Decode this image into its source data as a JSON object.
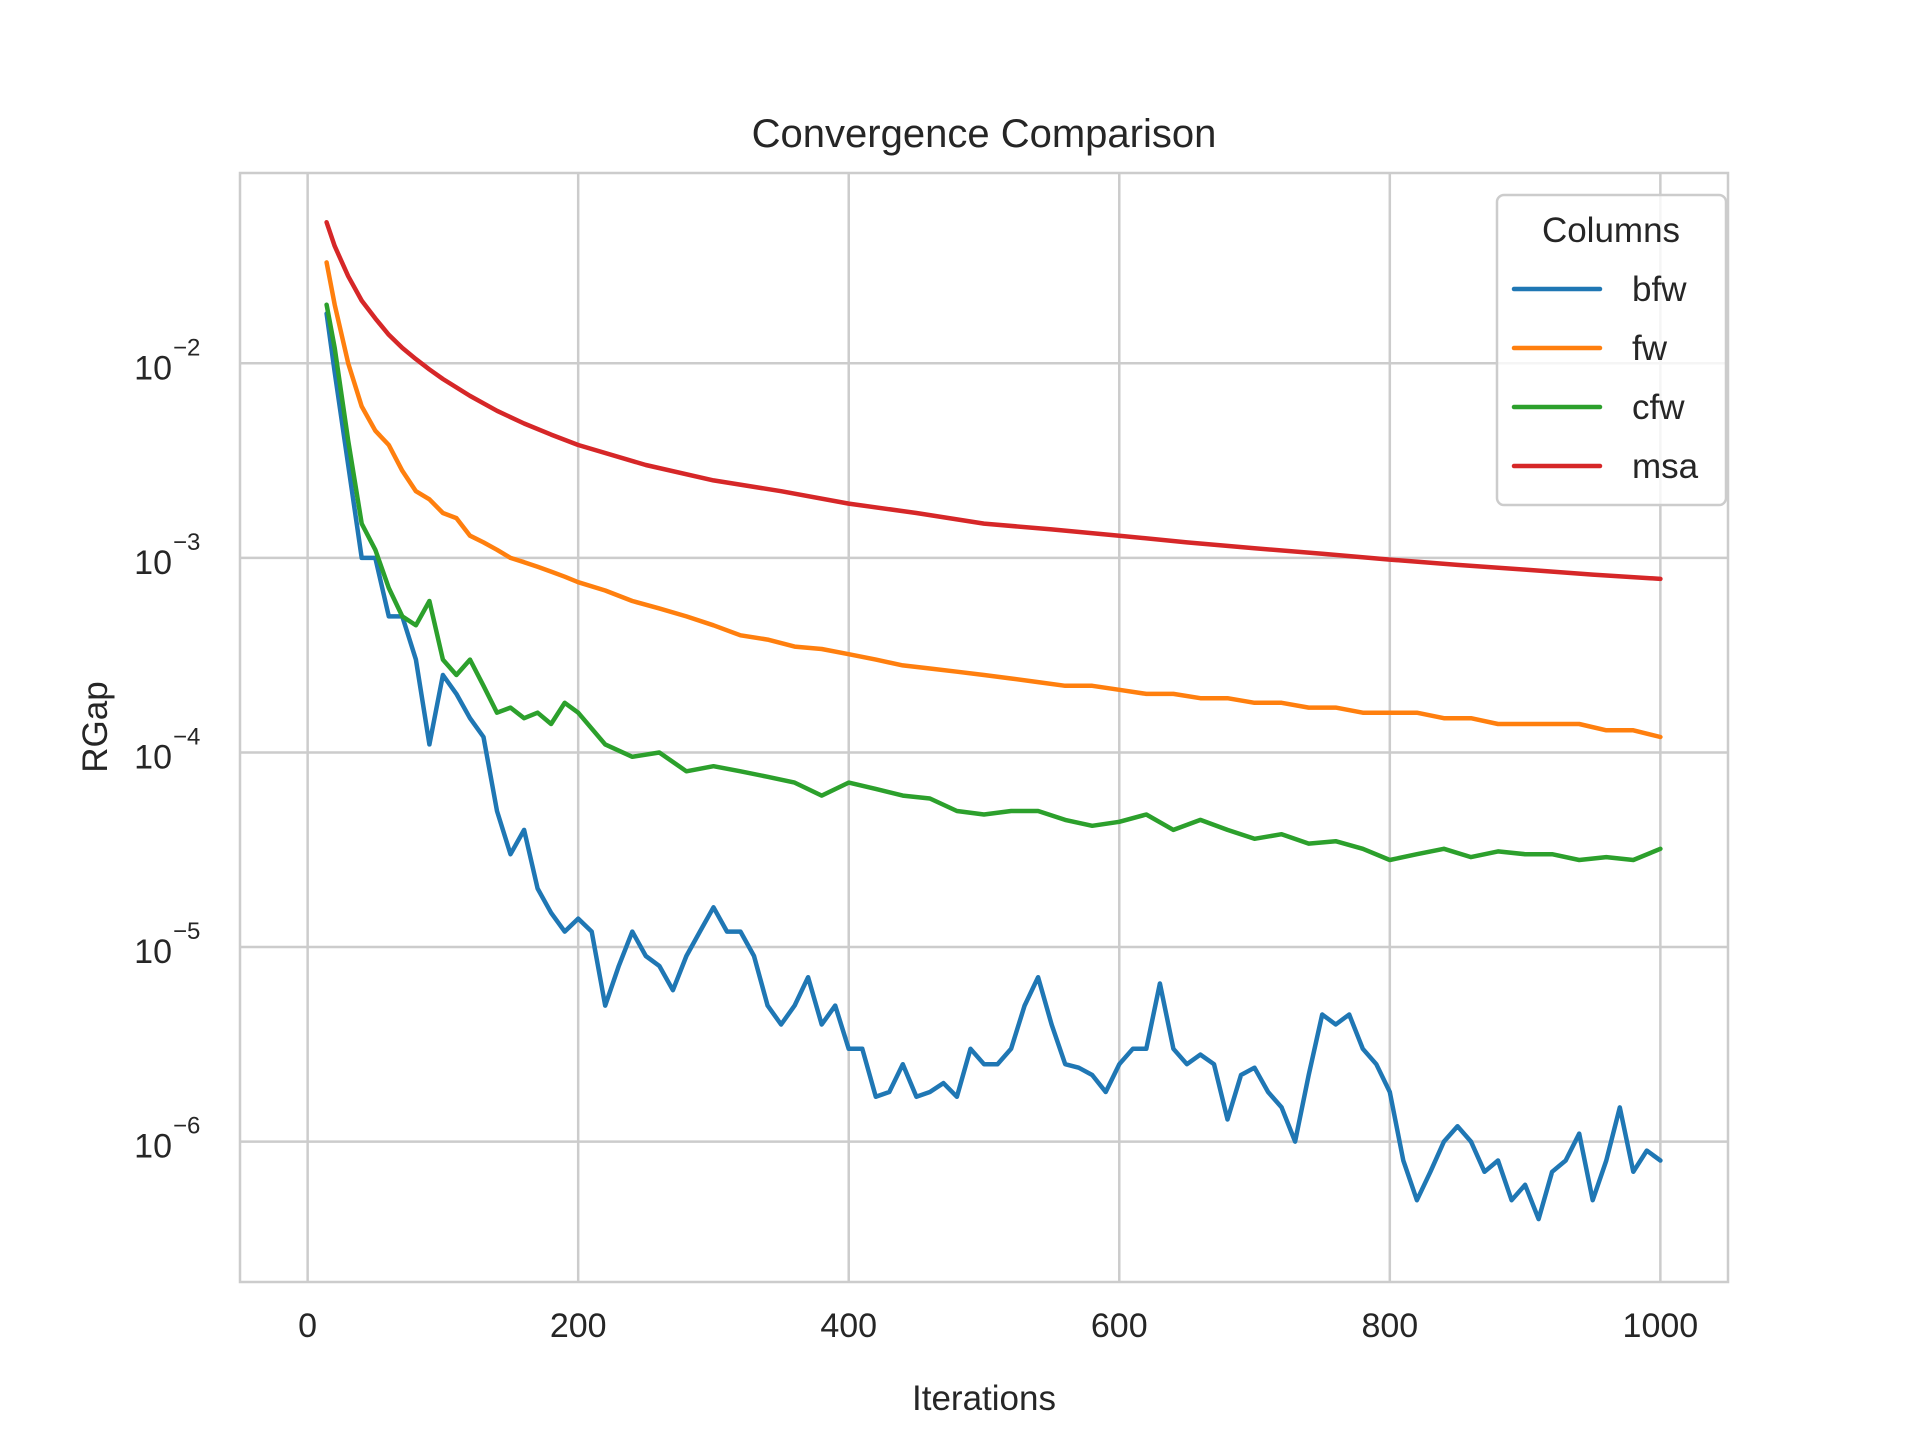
{
  "chart_data": {
    "type": "line",
    "title": "Convergence Comparison",
    "xlabel": "Iterations",
    "ylabel": "RGap",
    "xscale": "linear",
    "yscale": "log",
    "xlim": [
      -50,
      1050
    ],
    "ylim": [
      1.9e-07,
      0.095
    ],
    "x_ticks": [
      0,
      200,
      400,
      600,
      800,
      1000
    ],
    "x_tick_labels": [
      "0",
      "200",
      "400",
      "600",
      "800",
      "1000"
    ],
    "y_ticks": [
      0.01,
      0.001,
      0.0001,
      1e-05,
      1e-06
    ],
    "y_tick_labels": [
      {
        "base": "10",
        "exp": "−2"
      },
      {
        "base": "10",
        "exp": "−3"
      },
      {
        "base": "10",
        "exp": "−4"
      },
      {
        "base": "10",
        "exp": "−5"
      },
      {
        "base": "10",
        "exp": "−6"
      }
    ],
    "grid": true,
    "legend": {
      "title": "Columns",
      "position": "top-right"
    },
    "series": [
      {
        "name": "bfw",
        "color": "#1f77b4",
        "x": [
          14,
          20,
          30,
          40,
          50,
          60,
          70,
          80,
          90,
          100,
          110,
          120,
          130,
          140,
          150,
          160,
          170,
          180,
          190,
          200,
          210,
          220,
          230,
          240,
          250,
          260,
          270,
          280,
          290,
          300,
          310,
          320,
          330,
          340,
          350,
          360,
          370,
          380,
          390,
          400,
          410,
          420,
          430,
          440,
          450,
          460,
          470,
          480,
          490,
          500,
          510,
          520,
          530,
          540,
          550,
          560,
          570,
          580,
          590,
          600,
          610,
          620,
          630,
          640,
          650,
          660,
          670,
          680,
          690,
          700,
          710,
          720,
          730,
          740,
          750,
          760,
          770,
          780,
          790,
          800,
          810,
          820,
          830,
          840,
          850,
          860,
          870,
          880,
          890,
          900,
          910,
          920,
          930,
          940,
          950,
          960,
          970,
          980,
          990,
          1000
        ],
        "values": [
          0.018,
          0.009,
          0.003,
          0.001,
          0.001,
          0.0005,
          0.0005,
          0.0003,
          0.00011,
          0.00025,
          0.0002,
          0.00015,
          0.00012,
          5e-05,
          3e-05,
          4e-05,
          2e-05,
          1.5e-05,
          1.2e-05,
          1.4e-05,
          1.2e-05,
          5e-06,
          8e-06,
          1.2e-05,
          9e-06,
          8e-06,
          6e-06,
          9e-06,
          1.2e-05,
          1.6e-05,
          1.2e-05,
          1.2e-05,
          9e-06,
          5e-06,
          4e-06,
          5e-06,
          7e-06,
          4e-06,
          5e-06,
          3e-06,
          3e-06,
          1.7e-06,
          1.8e-06,
          2.5e-06,
          1.7e-06,
          1.8e-06,
          2e-06,
          1.7e-06,
          3e-06,
          2.5e-06,
          2.5e-06,
          3e-06,
          5e-06,
          7e-06,
          4e-06,
          2.5e-06,
          2.4e-06,
          2.2e-06,
          1.8e-06,
          2.5e-06,
          3e-06,
          3e-06,
          6.5e-06,
          3e-06,
          2.5e-06,
          2.8e-06,
          2.5e-06,
          1.3e-06,
          2.2e-06,
          2.4e-06,
          1.8e-06,
          1.5e-06,
          1e-06,
          2.2e-06,
          4.5e-06,
          4e-06,
          4.5e-06,
          3e-06,
          2.5e-06,
          1.8e-06,
          8e-07,
          5e-07,
          7e-07,
          1e-06,
          1.2e-06,
          1e-06,
          7e-07,
          8e-07,
          5e-07,
          6e-07,
          4e-07,
          7e-07,
          8e-07,
          1.1e-06,
          5e-07,
          8e-07,
          1.5e-06,
          7e-07,
          9e-07,
          8e-07
        ]
      },
      {
        "name": "fw",
        "color": "#ff7f0e",
        "x": [
          14,
          20,
          30,
          40,
          50,
          60,
          70,
          80,
          90,
          100,
          110,
          120,
          130,
          140,
          150,
          160,
          170,
          180,
          190,
          200,
          220,
          240,
          260,
          280,
          300,
          320,
          340,
          360,
          380,
          400,
          420,
          440,
          460,
          480,
          500,
          520,
          540,
          560,
          580,
          600,
          620,
          640,
          660,
          680,
          700,
          720,
          740,
          760,
          780,
          800,
          820,
          840,
          860,
          880,
          900,
          920,
          940,
          960,
          980,
          1000
        ],
        "values": [
          0.033,
          0.02,
          0.01,
          0.006,
          0.0045,
          0.0038,
          0.0028,
          0.0022,
          0.002,
          0.0017,
          0.0016,
          0.0013,
          0.0012,
          0.0011,
          0.001,
          0.00095,
          0.0009,
          0.00085,
          0.0008,
          0.00075,
          0.00068,
          0.0006,
          0.00055,
          0.0005,
          0.00045,
          0.0004,
          0.00038,
          0.00035,
          0.00034,
          0.00032,
          0.0003,
          0.00028,
          0.00027,
          0.00026,
          0.00025,
          0.00024,
          0.00023,
          0.00022,
          0.00022,
          0.00021,
          0.0002,
          0.0002,
          0.00019,
          0.00019,
          0.00018,
          0.00018,
          0.00017,
          0.00017,
          0.00016,
          0.00016,
          0.00016,
          0.00015,
          0.00015,
          0.00014,
          0.00014,
          0.00014,
          0.00014,
          0.00013,
          0.00013,
          0.00012
        ]
      },
      {
        "name": "cfw",
        "color": "#2ca02c",
        "x": [
          14,
          20,
          30,
          40,
          50,
          60,
          70,
          80,
          90,
          100,
          110,
          120,
          130,
          140,
          150,
          160,
          170,
          180,
          190,
          200,
          220,
          240,
          260,
          280,
          300,
          320,
          340,
          360,
          380,
          400,
          420,
          440,
          460,
          480,
          500,
          520,
          540,
          560,
          580,
          600,
          620,
          640,
          660,
          680,
          700,
          720,
          740,
          760,
          780,
          800,
          820,
          840,
          860,
          880,
          900,
          920,
          940,
          960,
          980,
          1000
        ],
        "values": [
          0.02,
          0.012,
          0.004,
          0.0015,
          0.0011,
          0.0007,
          0.0005,
          0.00045,
          0.0006,
          0.0003,
          0.00025,
          0.0003,
          0.00022,
          0.00016,
          0.00017,
          0.00015,
          0.00016,
          0.00014,
          0.00018,
          0.00016,
          0.00011,
          9.5e-05,
          0.0001,
          8e-05,
          8.5e-05,
          8e-05,
          7.5e-05,
          7e-05,
          6e-05,
          7e-05,
          6.5e-05,
          6e-05,
          5.8e-05,
          5e-05,
          4.8e-05,
          5e-05,
          5e-05,
          4.5e-05,
          4.2e-05,
          4.4e-05,
          4.8e-05,
          4e-05,
          4.5e-05,
          4e-05,
          3.6e-05,
          3.8e-05,
          3.4e-05,
          3.5e-05,
          3.2e-05,
          2.8e-05,
          3e-05,
          3.2e-05,
          2.9e-05,
          3.1e-05,
          3e-05,
          3e-05,
          2.8e-05,
          2.9e-05,
          2.8e-05,
          3.2e-05
        ]
      },
      {
        "name": "msa",
        "color": "#d62728",
        "x": [
          14,
          20,
          30,
          40,
          50,
          60,
          70,
          80,
          90,
          100,
          120,
          140,
          160,
          180,
          200,
          250,
          300,
          350,
          400,
          450,
          500,
          550,
          600,
          650,
          700,
          750,
          800,
          850,
          900,
          950,
          1000
        ],
        "values": [
          0.053,
          0.04,
          0.028,
          0.021,
          0.017,
          0.014,
          0.012,
          0.0105,
          0.0093,
          0.0083,
          0.0068,
          0.0057,
          0.0049,
          0.0043,
          0.0038,
          0.003,
          0.0025,
          0.0022,
          0.0019,
          0.0017,
          0.0015,
          0.0014,
          0.0013,
          0.0012,
          0.00112,
          0.00105,
          0.00098,
          0.00092,
          0.00087,
          0.00082,
          0.00078
        ]
      }
    ]
  }
}
